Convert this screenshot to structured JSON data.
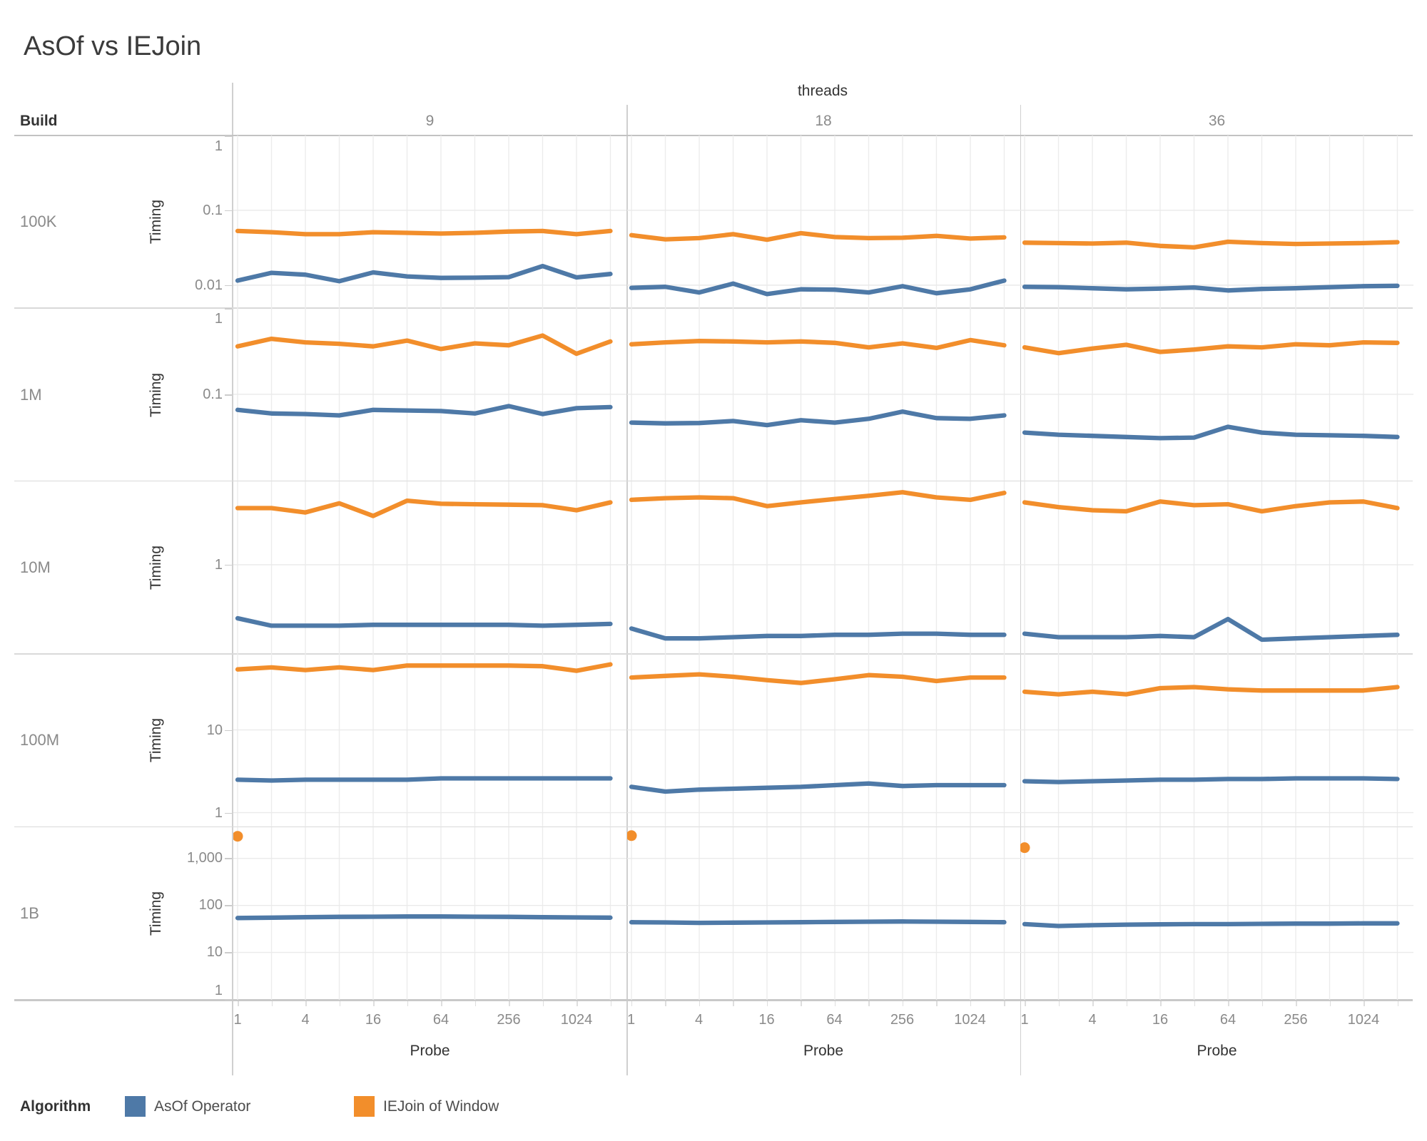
{
  "title": "AsOf vs IEJoin",
  "colors": {
    "asof": "#4e79a7",
    "iejoin": "#f28e2b"
  },
  "legend": {
    "title": "Algorithm",
    "items": [
      {
        "id": "asof",
        "label": "AsOf Operator",
        "color": "#4e79a7"
      },
      {
        "id": "iejoin",
        "label": "IEJoin of Window",
        "color": "#f28e2b"
      }
    ]
  },
  "chart_data": {
    "type": "line",
    "title": "AsOf vs IEJoin",
    "x_axis_label": "Probe",
    "y_axis_label": "Timing",
    "x_scale": "log2",
    "y_scale": "log10",
    "x_ticks": [
      "1",
      "4",
      "16",
      "64",
      "256",
      "1024"
    ],
    "x_values": [
      1,
      2,
      4,
      8,
      16,
      32,
      64,
      128,
      256,
      512,
      1024,
      2048
    ],
    "col_facet": {
      "label": "threads",
      "values": [
        "9",
        "18",
        "36"
      ]
    },
    "row_facet": {
      "label": "Build",
      "values": [
        "100K",
        "1M",
        "10M",
        "100M",
        "1B"
      ]
    },
    "series_names": {
      "asof": "AsOf Operator",
      "iejoin": "IEJoin of Window"
    },
    "rows": [
      {
        "build": "100K",
        "ylim": [
          0.0049,
          1
        ],
        "yticks": [
          {
            "v": 1,
            "label": "1"
          },
          {
            "v": 0.1,
            "label": "0.1"
          },
          {
            "v": 0.01,
            "label": "0.01"
          }
        ],
        "panels": [
          {
            "threads": "9",
            "asof": [
              0.0115,
              0.0146,
              0.0138,
              0.0113,
              0.0148,
              0.0131,
              0.0125,
              0.0126,
              0.0128,
              0.018,
              0.0127,
              0.0141
            ],
            "iejoin": [
              0.053,
              0.051,
              0.048,
              0.048,
              0.051,
              0.05,
              0.049,
              0.05,
              0.052,
              0.053,
              0.048,
              0.053
            ]
          },
          {
            "threads": "18",
            "asof": [
              0.0092,
              0.0095,
              0.008,
              0.0105,
              0.0076,
              0.0088,
              0.0087,
              0.008,
              0.0097,
              0.0078,
              0.0088,
              0.0115
            ],
            "iejoin": [
              0.0465,
              0.041,
              0.0425,
              0.048,
              0.0405,
              0.0495,
              0.044,
              0.0425,
              0.043,
              0.0455,
              0.042,
              0.0435
            ]
          },
          {
            "threads": "36",
            "asof": [
              0.0095,
              0.0094,
              0.0091,
              0.0088,
              0.009,
              0.0093,
              0.0085,
              0.0089,
              0.0091,
              0.0094,
              0.0097,
              0.0098
            ],
            "iejoin": [
              0.037,
              0.0365,
              0.036,
              0.037,
              0.0335,
              0.032,
              0.038,
              0.0365,
              0.0355,
              0.036,
              0.0365,
              0.0375
            ]
          }
        ]
      },
      {
        "build": "1M",
        "ylim": [
          0.0099,
          1
        ],
        "yticks": [
          {
            "v": 1,
            "label": "1"
          },
          {
            "v": 0.1,
            "label": "0.1"
          }
        ],
        "panels": [
          {
            "threads": "9",
            "asof": [
              0.066,
              0.06,
              0.059,
              0.057,
              0.066,
              0.065,
              0.064,
              0.06,
              0.073,
              0.059,
              0.069,
              0.071
            ],
            "iejoin": [
              0.36,
              0.44,
              0.4,
              0.385,
              0.36,
              0.42,
              0.335,
              0.39,
              0.37,
              0.48,
              0.295,
              0.41
            ]
          },
          {
            "threads": "18",
            "asof": [
              0.047,
              0.046,
              0.0465,
              0.049,
              0.044,
              0.05,
              0.047,
              0.052,
              0.063,
              0.053,
              0.052,
              0.057
            ],
            "iejoin": [
              0.38,
              0.4,
              0.415,
              0.41,
              0.4,
              0.41,
              0.395,
              0.35,
              0.39,
              0.345,
              0.425,
              0.37
            ]
          },
          {
            "threads": "36",
            "asof": [
              0.036,
              0.034,
              0.033,
              0.032,
              0.031,
              0.0315,
              0.042,
              0.036,
              0.034,
              0.0335,
              0.033,
              0.032
            ],
            "iejoin": [
              0.35,
              0.3,
              0.34,
              0.375,
              0.31,
              0.33,
              0.36,
              0.35,
              0.38,
              0.37,
              0.4,
              0.395
            ]
          }
        ]
      },
      {
        "build": "10M",
        "ylim": [
          0.112,
          7.7
        ],
        "yticks": [
          {
            "v": 1,
            "label": "1"
          }
        ],
        "panels": [
          {
            "threads": "9",
            "asof": [
              0.27,
              0.225,
              0.225,
              0.225,
              0.23,
              0.23,
              0.23,
              0.23,
              0.23,
              0.225,
              0.23,
              0.235
            ],
            "iejoin": [
              4.0,
              4.0,
              3.6,
              4.5,
              3.3,
              4.8,
              4.45,
              4.4,
              4.35,
              4.3,
              3.8,
              4.6
            ]
          },
          {
            "threads": "18",
            "asof": [
              0.21,
              0.165,
              0.165,
              0.17,
              0.175,
              0.175,
              0.18,
              0.18,
              0.185,
              0.185,
              0.18,
              0.18
            ],
            "iejoin": [
              4.9,
              5.1,
              5.2,
              5.1,
              4.2,
              4.6,
              5.0,
              5.4,
              5.9,
              5.2,
              4.9,
              5.8
            ]
          },
          {
            "threads": "36",
            "asof": [
              0.185,
              0.17,
              0.17,
              0.17,
              0.175,
              0.17,
              0.265,
              0.16,
              0.165,
              0.17,
              0.175,
              0.18
            ],
            "iejoin": [
              4.6,
              4.1,
              3.8,
              3.7,
              4.7,
              4.3,
              4.4,
              3.7,
              4.2,
              4.6,
              4.7,
              4.0
            ]
          }
        ]
      },
      {
        "build": "100M",
        "ylim": [
          0.675,
          83
        ],
        "yticks": [
          {
            "v": 10,
            "label": "10"
          },
          {
            "v": 1,
            "label": "1"
          }
        ],
        "panels": [
          {
            "threads": "9",
            "asof": [
              2.5,
              2.45,
              2.5,
              2.5,
              2.5,
              2.5,
              2.6,
              2.6,
              2.6,
              2.6,
              2.6,
              2.6
            ],
            "iejoin": [
              54,
              57,
              53,
              57,
              53,
              60,
              60,
              60,
              60,
              59,
              52,
              62
            ]
          },
          {
            "threads": "18",
            "asof": [
              2.05,
              1.8,
              1.9,
              1.95,
              2.0,
              2.05,
              2.15,
              2.25,
              2.1,
              2.15,
              2.15,
              2.15
            ],
            "iejoin": [
              43,
              45,
              47,
              44,
              40,
              37,
              41,
              46,
              44,
              39,
              43,
              43
            ]
          },
          {
            "threads": "36",
            "asof": [
              2.4,
              2.35,
              2.4,
              2.45,
              2.5,
              2.5,
              2.55,
              2.55,
              2.6,
              2.6,
              2.6,
              2.55
            ],
            "iejoin": [
              29,
              27,
              29,
              27,
              32,
              33,
              31,
              30,
              30,
              30,
              30,
              33
            ]
          }
        ]
      },
      {
        "build": "1B",
        "ylim": [
          0.97,
          4600
        ],
        "yticks": [
          {
            "v": 1000,
            "label": "1,000"
          },
          {
            "v": 100,
            "label": "100"
          },
          {
            "v": 10,
            "label": "10"
          },
          {
            "v": 1,
            "label": "1"
          }
        ],
        "panels": [
          {
            "threads": "9",
            "asof": [
              54,
              55,
              56,
              57,
              57.5,
              58,
              58,
              57.5,
              57,
              56,
              55.5,
              55
            ],
            "iejoin_point": 2950
          },
          {
            "threads": "18",
            "asof": [
              44,
              43.5,
              42.5,
              43,
              43.5,
              44,
              44.5,
              45,
              45.5,
              45,
              44.5,
              44
            ],
            "iejoin_point": 3050
          },
          {
            "threads": "36",
            "asof": [
              40,
              36.5,
              38,
              39,
              39.5,
              40,
              40,
              40.5,
              41,
              41,
              41.5,
              41.5
            ],
            "iejoin_point": 1690
          }
        ]
      }
    ]
  }
}
